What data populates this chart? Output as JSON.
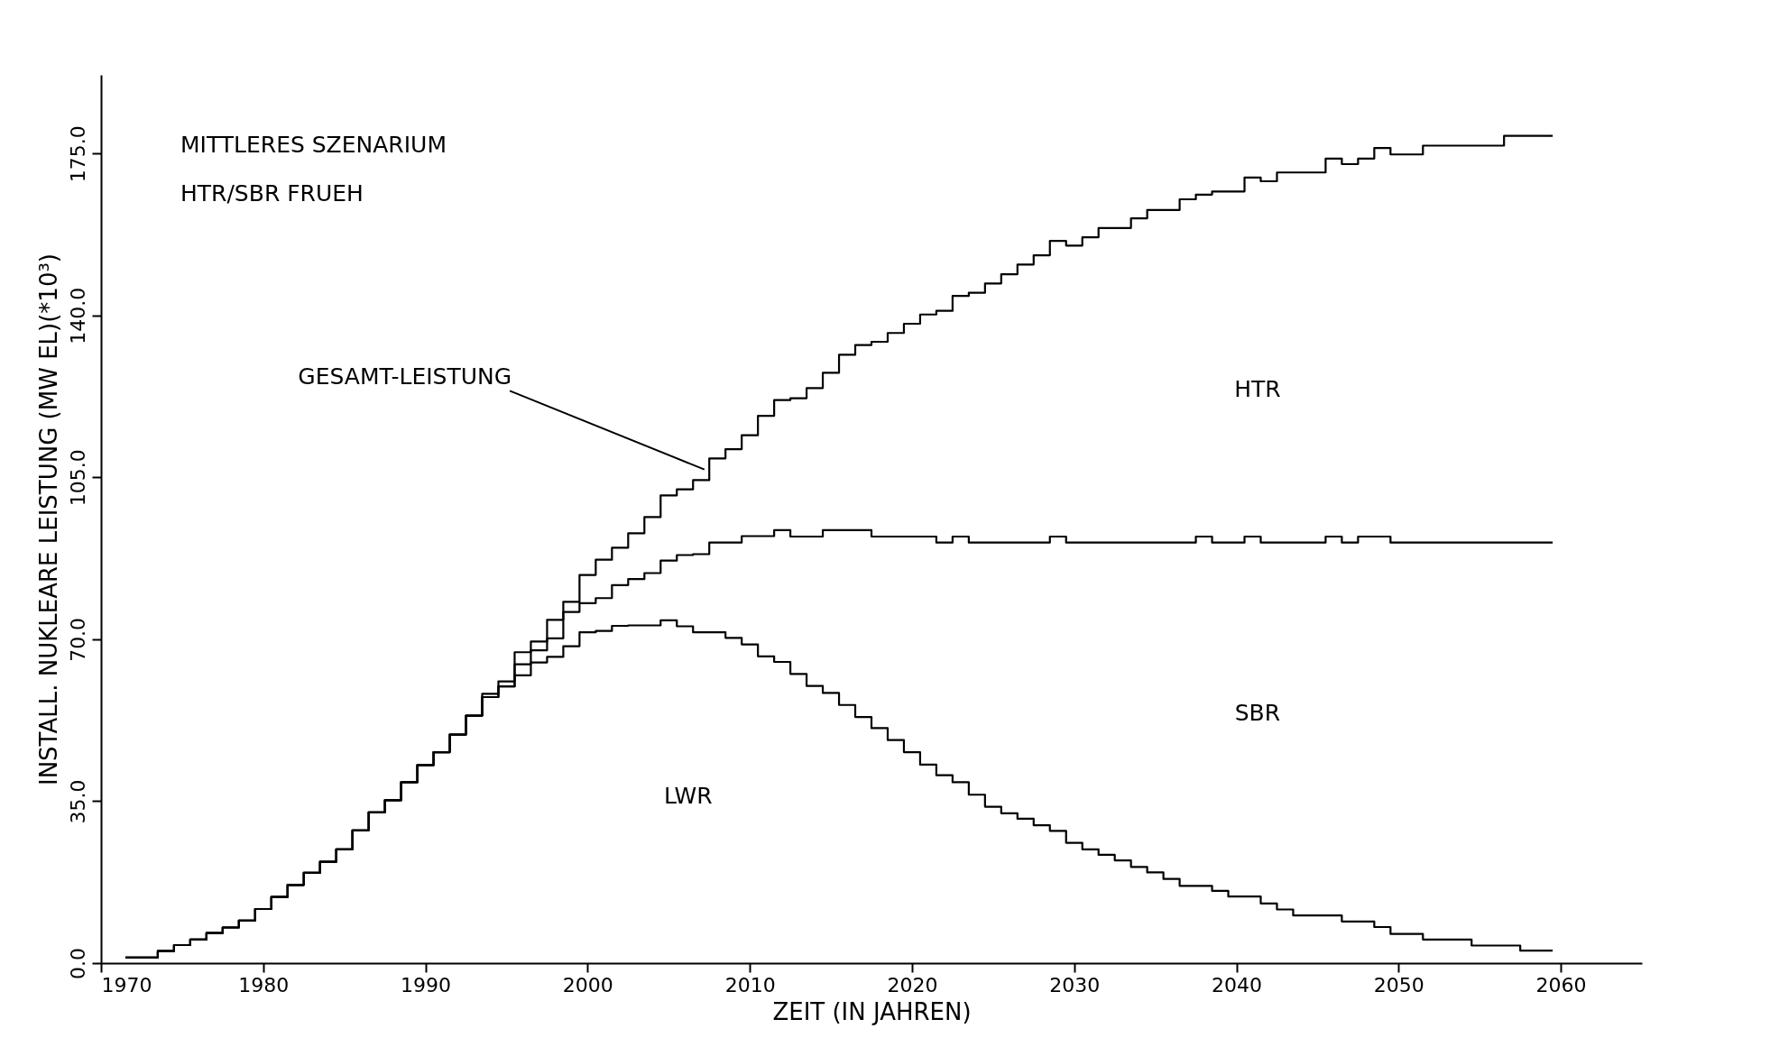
{
  "chart_data": {
    "type": "step",
    "title": "MITTLERES SZENARIUM",
    "subtitle": "HTR/SBR FRUEH",
    "xlabel": "ZEIT (IN JAHREN)",
    "ylabel": "INSTALL. NUKLEARE LEISTUNG (MW EL)(*10³)",
    "xlim": [
      1970,
      2065
    ],
    "xticks": [
      1970,
      1980,
      1990,
      2000,
      2010,
      2020,
      2030,
      2040,
      2050,
      2060
    ],
    "ylim": [
      0,
      192
    ],
    "yticks": [
      {
        "value": 0,
        "label": "0.0"
      },
      {
        "value": 35,
        "label": "35.0"
      },
      {
        "value": 70,
        "label": "70.0"
      },
      {
        "value": 105,
        "label": "105.0"
      },
      {
        "value": 140,
        "label": "140.0"
      },
      {
        "value": 175,
        "label": "175.0"
      }
    ],
    "line_style": "solid",
    "annotations": [
      "LWR",
      "SBR",
      "HTR",
      {
        "text": "GESAMT-LEISTUNG",
        "x": 2007.2,
        "y": 106.7
      }
    ],
    "x": [
      1971.5,
      1972.5,
      1973.5,
      1974.5,
      1975.5,
      1976.5,
      1977.5,
      1978.5,
      1979.5,
      1980.5,
      1981.5,
      1982.5,
      1983.5,
      1984.5,
      1985.5,
      1986.5,
      1987.5,
      1988.5,
      1989.5,
      1990.5,
      1991.5,
      1992.5,
      1993.5,
      1994.5,
      1995.5,
      1996.5,
      1997.5,
      1998.5,
      1999.5,
      2000.5,
      2001.5,
      2002.5,
      2003.5,
      2004.5,
      2005.5,
      2006.5,
      2007.5,
      2008.5,
      2009.5,
      2010.5,
      2011.5,
      2012.5,
      2013.5,
      2014.5,
      2015.5,
      2016.5,
      2017.5,
      2018.5,
      2019.5,
      2020.5,
      2021.5,
      2022.5,
      2023.5,
      2024.5,
      2025.5,
      2026.5,
      2027.5,
      2028.5,
      2029.5,
      2030.5,
      2031.5,
      2032.5,
      2033.5,
      2034.5,
      2035.5,
      2036.5,
      2037.5,
      2038.5,
      2039.5,
      2040.5,
      2041.5,
      2042.5,
      2043.5,
      2044.5,
      2045.5,
      2046.5,
      2047.5,
      2048.5,
      2049.5,
      2050.5,
      2051.5,
      2052.5,
      2053.5,
      2054.5,
      2055.5,
      2056.5,
      2057.5,
      2058.5,
      2059.5
    ],
    "series": [
      {
        "type": "step",
        "color": "#000000",
        "values": [
          1.2,
          1.2,
          2.6,
          3.9,
          5.1,
          6.5,
          7.7,
          9.2,
          11.7,
          14.3,
          16.9,
          19.5,
          21.9,
          24.6,
          28.7,
          32.6,
          35.2,
          39.1,
          42.8,
          45.6,
          49.4,
          53.5,
          57.5,
          59.8,
          62.2,
          65.0,
          66.2,
          68.5,
          71.5,
          71.8,
          72.9,
          73.0,
          73.0,
          74.1,
          72.8,
          71.5,
          71.5,
          70.3,
          68.9,
          66.3,
          65.1,
          62.5,
          59.9,
          58.4,
          55.8,
          53.2,
          50.8,
          48.2,
          45.6,
          42.9,
          40.6,
          39.1,
          36.4,
          33.8,
          32.4,
          31.2,
          29.8,
          28.6,
          26.0,
          24.6,
          23.4,
          22.2,
          20.8,
          19.6,
          18.2,
          16.7,
          16.7,
          15.6,
          14.4,
          14.4,
          12.9,
          11.6,
          10.3,
          10.3,
          10.3,
          9.0,
          9.0,
          7.8,
          6.3,
          6.3,
          5.1,
          5.1,
          5.1,
          3.8,
          3.8,
          3.8,
          2.7,
          2.7,
          2.7
        ]
      },
      {
        "type": "step",
        "color": "#000000",
        "values": [
          1.2,
          1.2,
          2.6,
          3.9,
          5.1,
          6.5,
          7.7,
          9.2,
          11.7,
          14.3,
          16.9,
          19.5,
          21.9,
          24.6,
          28.7,
          32.6,
          35.2,
          39.1,
          42.8,
          45.6,
          49.4,
          53.5,
          57.5,
          59.8,
          64.6,
          67.6,
          70.2,
          75.9,
          77.8,
          78.9,
          81.7,
          83.0,
          84.3,
          87.0,
          88.2,
          88.4,
          90.9,
          90.9,
          92.3,
          92.3,
          93.6,
          92.2,
          92.2,
          93.6,
          93.6,
          93.6,
          92.2,
          92.2,
          92.2,
          92.2,
          90.9,
          92.2,
          90.9,
          90.9,
          90.9,
          90.9,
          90.9,
          92.2,
          90.9,
          90.9,
          90.9,
          90.9,
          90.9,
          90.9,
          90.9,
          90.9,
          92.2,
          90.9,
          90.9,
          92.2,
          90.9,
          90.9,
          90.9,
          90.9,
          92.2,
          90.9,
          92.2,
          92.2,
          90.9,
          90.9,
          90.9,
          90.9,
          90.9,
          90.9,
          90.9,
          90.9,
          90.9,
          90.9,
          90.9
        ]
      },
      {
        "type": "step",
        "color": "#000000",
        "values": [
          1.2,
          1.2,
          2.6,
          3.9,
          5.1,
          6.5,
          7.7,
          9.2,
          11.7,
          14.3,
          16.9,
          19.5,
          21.9,
          24.6,
          28.7,
          32.6,
          35.2,
          39.1,
          42.8,
          45.6,
          49.4,
          53.5,
          58.2,
          60.9,
          67.2,
          69.5,
          74.2,
          78.1,
          83.9,
          87.2,
          89.8,
          92.9,
          96.4,
          101.1,
          102.4,
          104.4,
          109.1,
          111.1,
          114.1,
          118.3,
          121.7,
          122.1,
          124.3,
          127.6,
          131.5,
          133.6,
          134.3,
          136.2,
          138.2,
          140.2,
          141.0,
          144.2,
          144.9,
          146.9,
          148.9,
          151.0,
          153.0,
          156.1,
          155.1,
          156.9,
          158.9,
          158.9,
          161.0,
          162.8,
          162.8,
          165.1,
          166.1,
          166.8,
          166.8,
          169.8,
          169.0,
          170.9,
          170.9,
          170.9,
          173.9,
          172.7,
          173.9,
          176.2,
          174.8,
          174.8,
          176.7,
          176.7,
          176.7,
          176.7,
          176.7,
          178.8,
          178.8,
          178.8,
          178.8
        ]
      }
    ]
  }
}
